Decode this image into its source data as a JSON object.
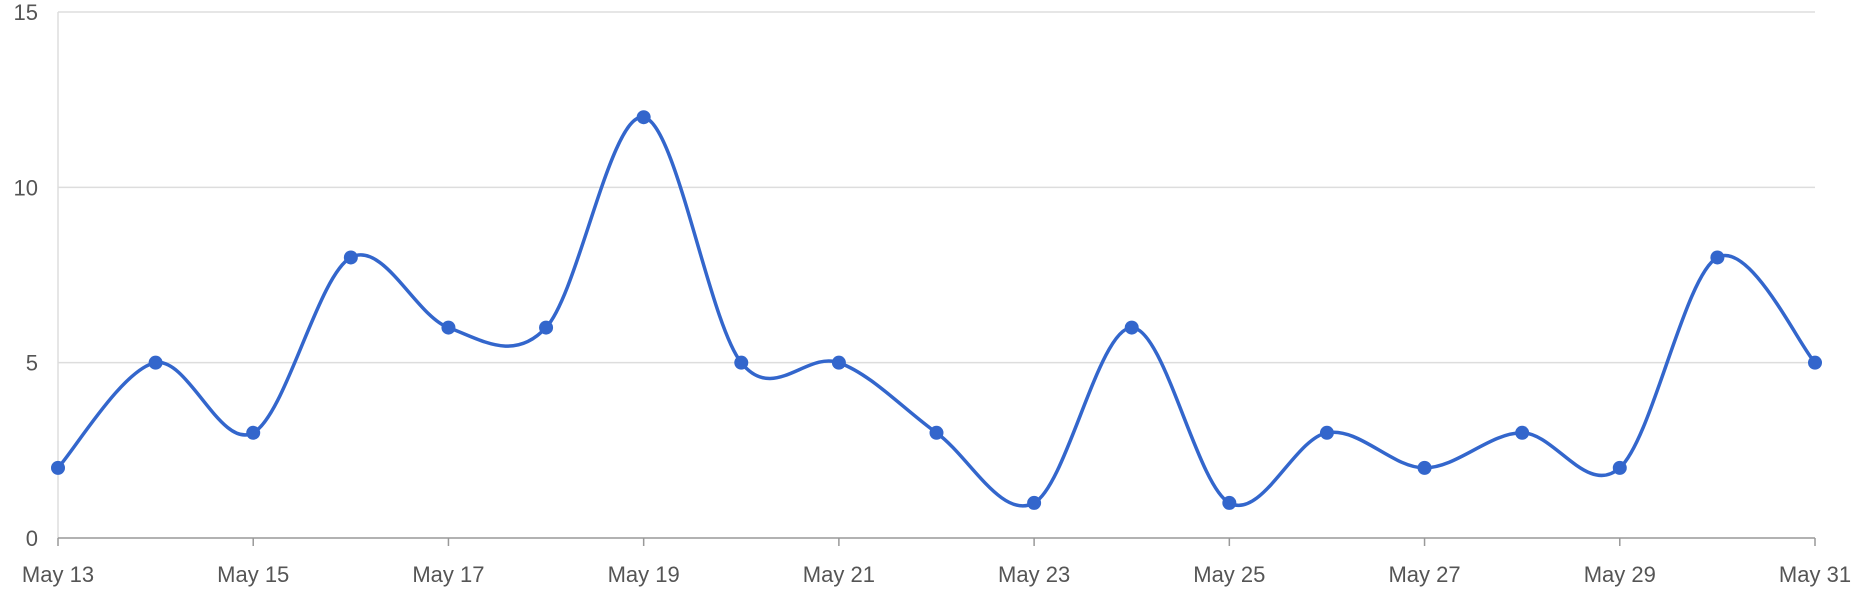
{
  "chart_data": {
    "type": "line",
    "title": "",
    "xlabel": "",
    "ylabel": "",
    "x": [
      "May 13",
      "May 14",
      "May 15",
      "May 16",
      "May 17",
      "May 18",
      "May 19",
      "May 20",
      "May 21",
      "May 22",
      "May 23",
      "May 24",
      "May 25",
      "May 26",
      "May 27",
      "May 28",
      "May 29",
      "May 30",
      "May 31"
    ],
    "x_tick_labels": [
      "May 13",
      "May 15",
      "May 17",
      "May 19",
      "May 21",
      "May 23",
      "May 25",
      "May 27",
      "May 29",
      "May 31"
    ],
    "series": [
      {
        "values": [
          2,
          5,
          3,
          8,
          6,
          6,
          12,
          5,
          5,
          3,
          1,
          6,
          1,
          3,
          2,
          3,
          2,
          8,
          5
        ],
        "color": "#3366cc"
      }
    ],
    "ylim": [
      0,
      15
    ],
    "y_ticks": [
      0,
      5,
      10,
      15
    ],
    "grid": true,
    "smooth": true,
    "markers": true,
    "legend": "none",
    "colors": {
      "line": "#3366cc",
      "grid": "#dddddd",
      "axis": "#999999",
      "text": "#555555"
    }
  }
}
